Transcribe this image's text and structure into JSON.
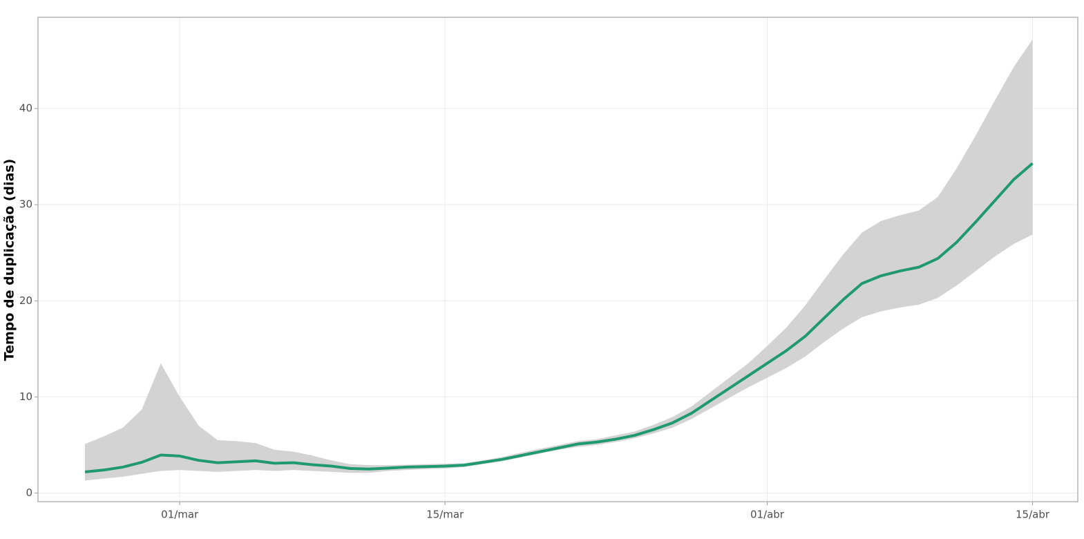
{
  "chart_data": {
    "type": "line",
    "y_label": "Tempo de duplicação (dias)",
    "x": [
      "24/fev",
      "25/fev",
      "26/fev",
      "27/fev",
      "28/fev",
      "01/mar",
      "02/mar",
      "03/mar",
      "04/mar",
      "05/mar",
      "06/mar",
      "07/mar",
      "08/mar",
      "09/mar",
      "10/mar",
      "11/mar",
      "12/mar",
      "13/mar",
      "14/mar",
      "15/mar",
      "16/mar",
      "17/mar",
      "18/mar",
      "19/mar",
      "20/mar",
      "21/mar",
      "22/mar",
      "23/mar",
      "24/mar",
      "25/mar",
      "26/mar",
      "27/mar",
      "28/mar",
      "29/mar",
      "30/mar",
      "31/mar",
      "01/abr",
      "02/abr",
      "03/abr",
      "04/abr",
      "05/abr",
      "06/abr",
      "07/abr",
      "08/abr",
      "09/abr",
      "10/abr",
      "11/abr",
      "12/abr",
      "13/abr",
      "14/abr",
      "15/abr"
    ],
    "xticks": [
      "01/mar",
      "15/mar",
      "01/abr",
      "15/abr"
    ],
    "series": [
      {
        "color": "#1f9a6e",
        "values": [
          2.2,
          2.4,
          2.7,
          3.2,
          3.95,
          3.85,
          3.4,
          3.15,
          3.25,
          3.35,
          3.1,
          3.15,
          2.95,
          2.8,
          2.55,
          2.5,
          2.6,
          2.7,
          2.75,
          2.8,
          2.9,
          3.2,
          3.5,
          3.9,
          4.3,
          4.7,
          5.1,
          5.3,
          5.6,
          6.0,
          6.6,
          7.3,
          8.3,
          9.6,
          10.9,
          12.2,
          13.5,
          14.8,
          16.3,
          18.2,
          20.1,
          21.8,
          22.6,
          23.1,
          23.5,
          24.4,
          26.1,
          28.2,
          30.4,
          32.6,
          34.3
        ]
      }
    ],
    "band": {
      "color": "#d3d3d3",
      "lower": [
        1.3,
        1.5,
        1.7,
        2.0,
        2.3,
        2.4,
        2.3,
        2.2,
        2.3,
        2.4,
        2.3,
        2.4,
        2.3,
        2.2,
        2.1,
        2.1,
        2.3,
        2.4,
        2.5,
        2.55,
        2.7,
        3.0,
        3.3,
        3.7,
        4.1,
        4.5,
        4.8,
        5.0,
        5.3,
        5.7,
        6.2,
        6.8,
        7.7,
        8.8,
        9.9,
        11.0,
        12.0,
        13.0,
        14.2,
        15.7,
        17.1,
        18.3,
        18.9,
        19.3,
        19.6,
        20.3,
        21.6,
        23.1,
        24.6,
        25.9,
        26.9
      ],
      "upper": [
        5.1,
        5.9,
        6.8,
        8.7,
        13.5,
        10.0,
        7.0,
        5.5,
        5.4,
        5.2,
        4.5,
        4.3,
        3.9,
        3.4,
        3.0,
        2.9,
        2.9,
        2.95,
        3.0,
        3.05,
        3.1,
        3.4,
        3.75,
        4.2,
        4.6,
        5.0,
        5.4,
        5.6,
        6.0,
        6.4,
        7.1,
        7.9,
        9.0,
        10.5,
        12.0,
        13.5,
        15.3,
        17.2,
        19.5,
        22.2,
        24.8,
        27.1,
        28.3,
        28.9,
        29.4,
        30.8,
        33.8,
        37.2,
        40.8,
        44.3,
        47.2
      ]
    },
    "ylim": [
      -0.9,
      49.5
    ],
    "yticks": [
      0,
      10,
      20,
      30,
      40
    ],
    "grid": true
  }
}
